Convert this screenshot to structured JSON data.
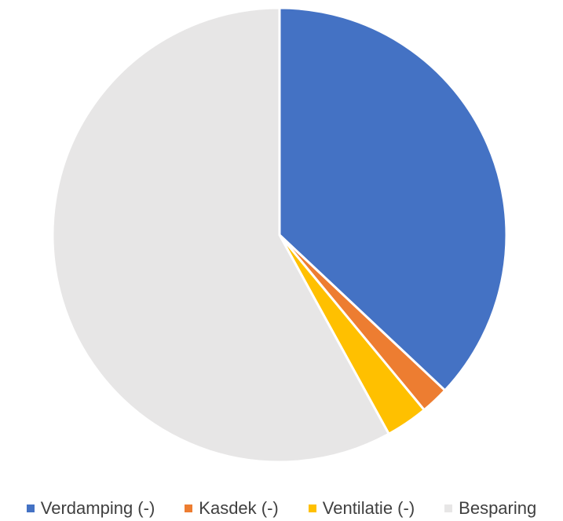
{
  "chart_data": {
    "type": "pie",
    "title": "",
    "slices": [
      {
        "label": "Verdamping (-)",
        "value": 37,
        "color": "#4472C4"
      },
      {
        "label": "Kasdek (-)",
        "value": 2,
        "color": "#ED7D31"
      },
      {
        "label": "Ventilatie (-)",
        "value": 3,
        "color": "#FFC000"
      },
      {
        "label": "Besparing",
        "value": 58,
        "color": "#E7E6E6"
      }
    ],
    "start_angle": "12 o'clock",
    "direction": "clockwise",
    "legend_position": "bottom"
  }
}
